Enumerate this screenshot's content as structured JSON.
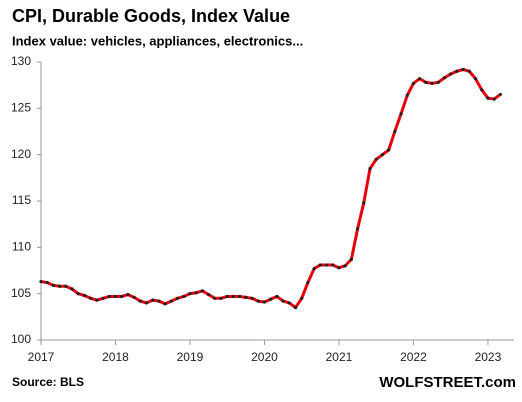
{
  "chart_data": {
    "type": "line",
    "title": "CPI, Durable Goods,  Index Value",
    "subtitle": "Index value: vehicles, appliances, electronics...",
    "source": "Source: BLS",
    "brand": "WOLFSTREET.com",
    "x": [
      2017,
      2017.083,
      2017.167,
      2017.25,
      2017.333,
      2017.417,
      2017.5,
      2017.583,
      2017.667,
      2017.75,
      2017.833,
      2017.917,
      2018,
      2018.083,
      2018.167,
      2018.25,
      2018.333,
      2018.417,
      2018.5,
      2018.583,
      2018.667,
      2018.75,
      2018.833,
      2018.917,
      2019,
      2019.083,
      2019.167,
      2019.25,
      2019.333,
      2019.417,
      2019.5,
      2019.583,
      2019.667,
      2019.75,
      2019.833,
      2019.917,
      2020,
      2020.083,
      2020.167,
      2020.25,
      2020.333,
      2020.417,
      2020.5,
      2020.583,
      2020.667,
      2020.75,
      2020.833,
      2020.917,
      2021,
      2021.083,
      2021.167,
      2021.25,
      2021.333,
      2021.417,
      2021.5,
      2021.583,
      2021.667,
      2021.75,
      2021.833,
      2021.917,
      2022,
      2022.083,
      2022.167,
      2022.25,
      2022.333,
      2022.417,
      2022.5,
      2022.583,
      2022.667,
      2022.75,
      2022.833,
      2022.917,
      2023,
      2023.083,
      2023.167
    ],
    "series": [
      {
        "name": "CPI Durable Goods",
        "color": "#e8000b",
        "marker_color": "#222222",
        "values": [
          106.3,
          106.2,
          105.9,
          105.8,
          105.8,
          105.5,
          105.0,
          104.8,
          104.5,
          104.3,
          104.5,
          104.7,
          104.7,
          104.7,
          104.9,
          104.6,
          104.2,
          104.0,
          104.3,
          104.2,
          103.9,
          104.2,
          104.5,
          104.7,
          105.0,
          105.1,
          105.3,
          104.9,
          104.5,
          104.5,
          104.7,
          104.7,
          104.7,
          104.6,
          104.5,
          104.2,
          104.1,
          104.4,
          104.7,
          104.2,
          104.0,
          103.5,
          104.5,
          106.2,
          107.7,
          108.1,
          108.1,
          108.1,
          107.8,
          108.0,
          108.7,
          112.0,
          114.8,
          118.5,
          119.5,
          120.0,
          120.5,
          122.5,
          124.4,
          126.4,
          127.7,
          128.2,
          127.8,
          127.7,
          127.8,
          128.3,
          128.7,
          129.0,
          129.2,
          129.0,
          128.2,
          127.0,
          126.1,
          126.0,
          126.5
        ]
      }
    ],
    "xlim": [
      2017,
      2023.35
    ],
    "xticks": [
      2017,
      2018,
      2019,
      2020,
      2021,
      2022,
      2023
    ],
    "ylim": [
      100,
      130
    ],
    "yticks": [
      100,
      105,
      110,
      115,
      120,
      125,
      130
    ],
    "grid": false
  }
}
